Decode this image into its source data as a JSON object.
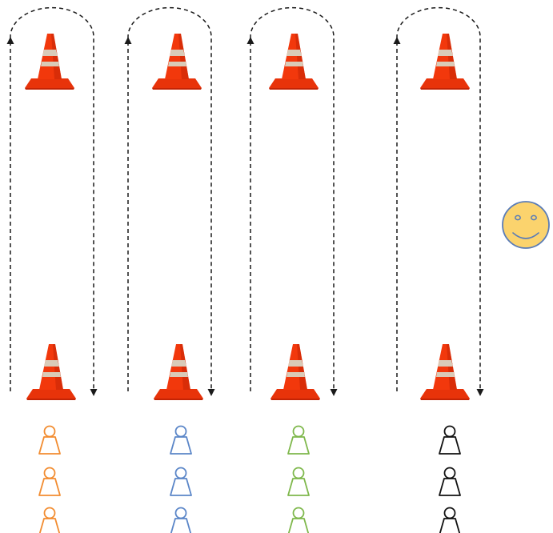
{
  "diagram": {
    "background": "#ffffff",
    "path_color": "#1a1a1a",
    "cone": {
      "body_color": "#f2380c",
      "body_shadow_color": "#c42405",
      "band_color": "#d9cbb8",
      "base_color": "#e8330a"
    },
    "coach": {
      "icon": "smiley-face-icon",
      "fill_color": "#fbd36d",
      "outline_color": "#5a7cb7"
    },
    "lanes": [
      {
        "id": "lane-1",
        "team_color": "#f28c30",
        "players": 3
      },
      {
        "id": "lane-2",
        "team_color": "#5b86c8",
        "players": 3
      },
      {
        "id": "lane-3",
        "team_color": "#7fb84c",
        "players": 3
      },
      {
        "id": "lane-4",
        "team_color": "#111111",
        "players": 3
      }
    ]
  }
}
